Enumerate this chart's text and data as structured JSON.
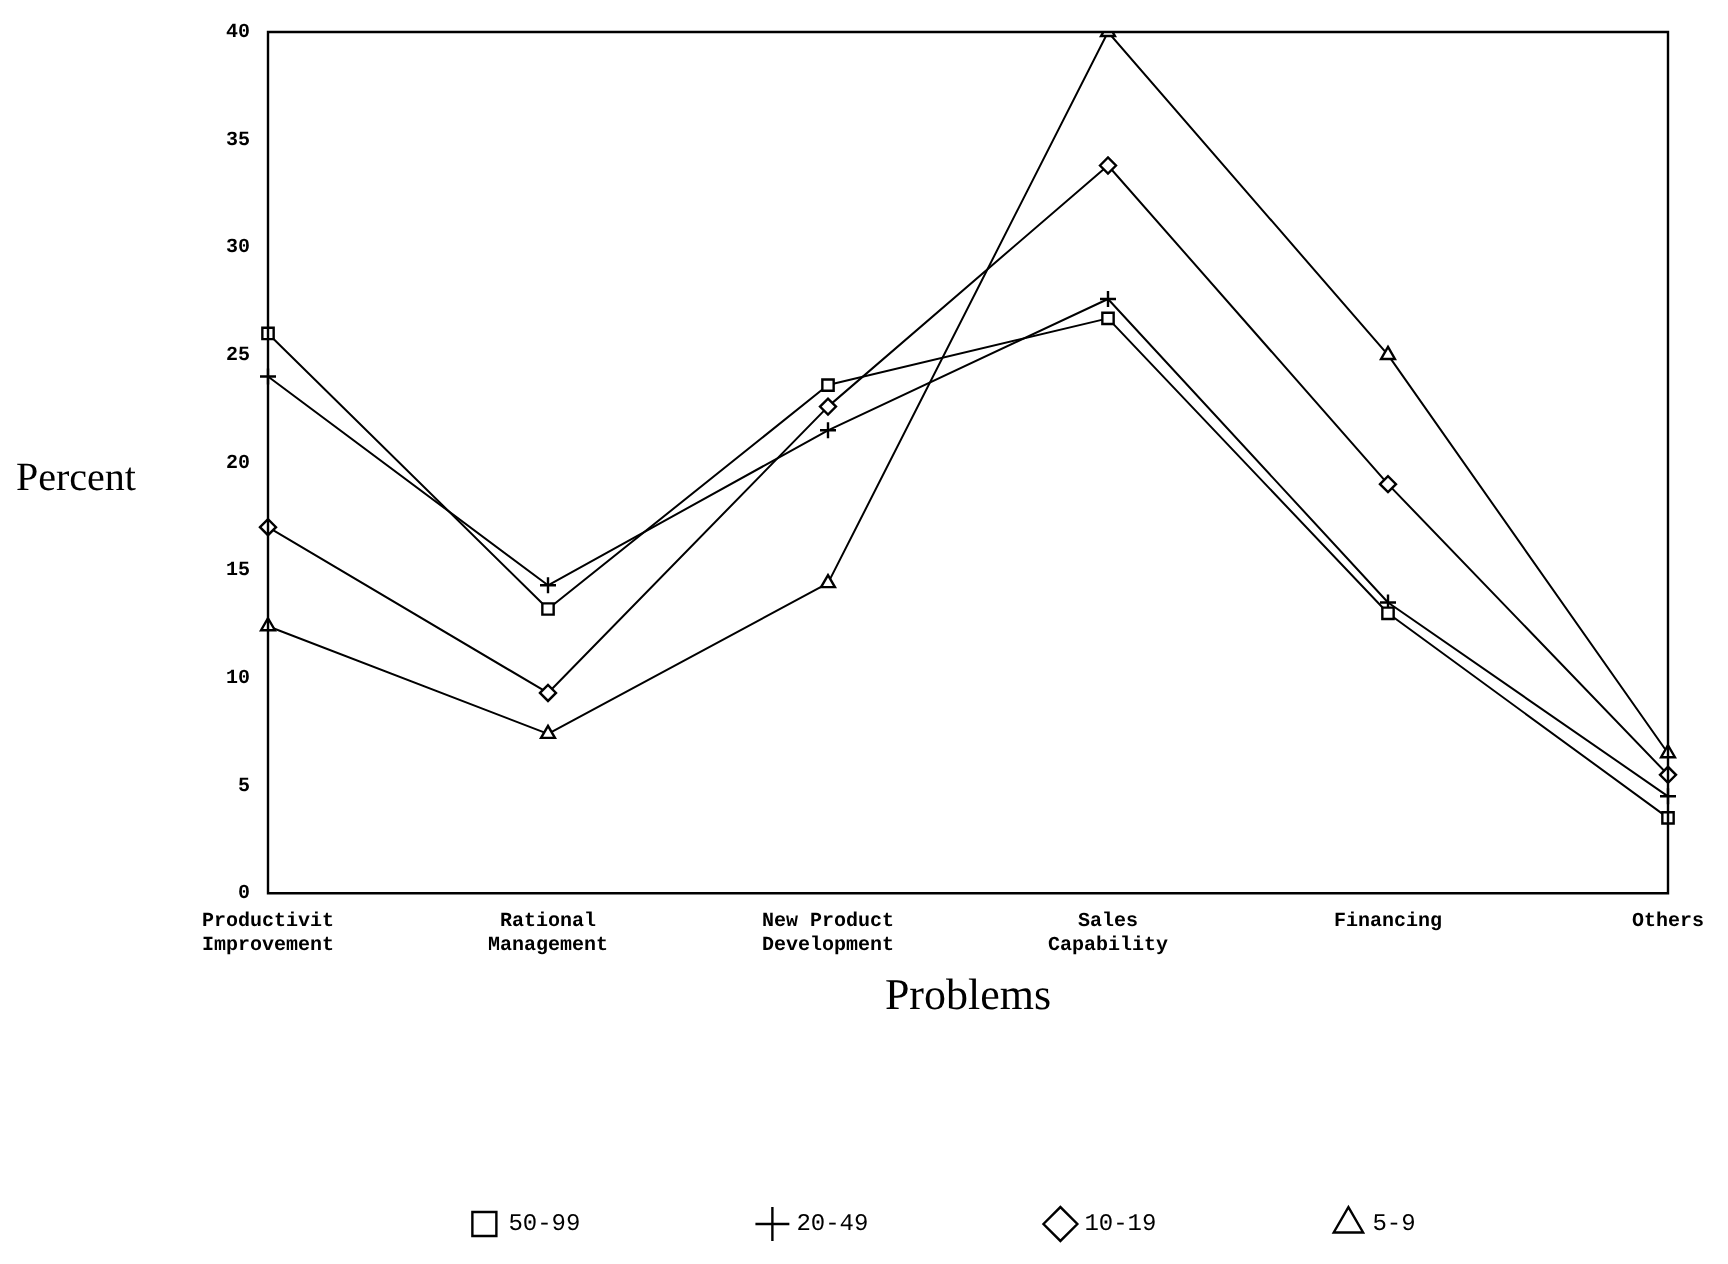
{
  "chart_data": {
    "type": "line",
    "xlabel": "Problems",
    "ylabel": "Percent",
    "categories": [
      "Productivit\nImprovement",
      "Rational\nManagement",
      "New Product\nDevelopment",
      "Sales\nCapability",
      "Financing",
      "Others"
    ],
    "series": [
      {
        "name": "50-99",
        "color": "#000000",
        "marker": "square",
        "values": [
          26,
          13.2,
          23.6,
          26.7,
          13,
          3.5
        ]
      },
      {
        "name": "20-49",
        "color": "#000000",
        "marker": "cross",
        "values": [
          24,
          14.3,
          21.5,
          27.6,
          13.5,
          4.5
        ]
      },
      {
        "name": "10-19",
        "color": "#000000",
        "marker": "diamond",
        "values": [
          17,
          9.3,
          22.6,
          33.8,
          19,
          5.5
        ]
      },
      {
        "name": "5-9",
        "color": "#000000",
        "marker": "triangle",
        "values": [
          12.4,
          7.4,
          14.4,
          40,
          25,
          6.5
        ]
      }
    ],
    "ylim": [
      0,
      40
    ],
    "yticks": [
      0,
      5,
      10,
      15,
      20,
      25,
      30,
      35,
      40
    ],
    "grid": false,
    "legend": "bottom",
    "line_style": "solid"
  }
}
